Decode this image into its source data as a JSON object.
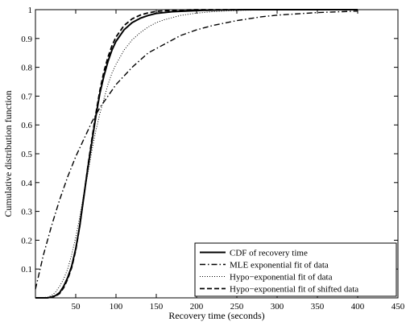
{
  "chart_data": {
    "type": "line",
    "title": "",
    "xlabel": "Recovery time (seconds)",
    "ylabel": "Cumulative distribution function",
    "xlim": [
      0,
      450
    ],
    "ylim": [
      0,
      1
    ],
    "xticks": [
      50,
      100,
      150,
      200,
      250,
      300,
      350,
      400,
      450
    ],
    "yticks": [
      0.1,
      0.2,
      0.3,
      0.4,
      0.5,
      0.6,
      0.7,
      0.8,
      0.9,
      1
    ],
    "grid": false,
    "legend_position": "bottom-right",
    "series": [
      {
        "name": "CDF of recovery time",
        "style": "solid",
        "x": [
          0,
          15,
          20,
          25,
          30,
          35,
          40,
          45,
          50,
          55,
          60,
          65,
          70,
          75,
          80,
          85,
          90,
          95,
          100,
          110,
          120,
          130,
          140,
          150,
          170,
          200,
          230,
          260,
          300,
          350,
          400
        ],
        "y": [
          0,
          0,
          0.003,
          0.008,
          0.018,
          0.04,
          0.07,
          0.11,
          0.17,
          0.25,
          0.35,
          0.45,
          0.54,
          0.63,
          0.71,
          0.77,
          0.82,
          0.86,
          0.89,
          0.93,
          0.955,
          0.97,
          0.98,
          0.987,
          0.993,
          0.997,
          0.999,
          1,
          1,
          1,
          1
        ]
      },
      {
        "name": "MLE exponential fit of data",
        "style": "dashdot",
        "x": [
          0,
          10,
          20,
          30,
          40,
          50,
          60,
          70,
          80,
          90,
          100,
          120,
          140,
          160,
          180,
          200,
          220,
          250,
          280,
          300,
          350,
          400
        ],
        "y": [
          0.03,
          0.15,
          0.25,
          0.34,
          0.42,
          0.49,
          0.55,
          0.61,
          0.66,
          0.7,
          0.74,
          0.8,
          0.85,
          0.88,
          0.91,
          0.93,
          0.945,
          0.962,
          0.975,
          0.981,
          0.99,
          0.995
        ]
      },
      {
        "name": "Hypo−exponential fit of data",
        "style": "dotted",
        "x": [
          0,
          15,
          20,
          25,
          30,
          35,
          40,
          45,
          50,
          55,
          60,
          65,
          70,
          75,
          80,
          85,
          90,
          95,
          100,
          110,
          120,
          130,
          140,
          150,
          160,
          180,
          200,
          220,
          240,
          260,
          300,
          350,
          400
        ],
        "y": [
          0,
          0.002,
          0.008,
          0.02,
          0.04,
          0.065,
          0.1,
          0.15,
          0.21,
          0.28,
          0.36,
          0.43,
          0.51,
          0.58,
          0.64,
          0.69,
          0.74,
          0.78,
          0.81,
          0.86,
          0.895,
          0.92,
          0.94,
          0.955,
          0.965,
          0.98,
          0.988,
          0.993,
          0.996,
          0.998,
          1,
          1,
          1
        ]
      },
      {
        "name": "Hypo−exponential fit of shifted data",
        "style": "dashed",
        "x": [
          0,
          15,
          20,
          25,
          30,
          35,
          40,
          45,
          50,
          55,
          60,
          65,
          70,
          75,
          80,
          85,
          90,
          95,
          100,
          110,
          120,
          130,
          140,
          150,
          170,
          200,
          230,
          260,
          300,
          350,
          400
        ],
        "y": [
          0,
          0,
          0.002,
          0.006,
          0.015,
          0.035,
          0.065,
          0.105,
          0.165,
          0.25,
          0.35,
          0.455,
          0.55,
          0.64,
          0.72,
          0.785,
          0.835,
          0.875,
          0.905,
          0.945,
          0.968,
          0.981,
          0.989,
          0.994,
          0.998,
          1,
          1,
          1,
          1,
          1,
          1
        ]
      }
    ]
  },
  "colors": {
    "line": "#000000",
    "background": "#ffffff"
  }
}
